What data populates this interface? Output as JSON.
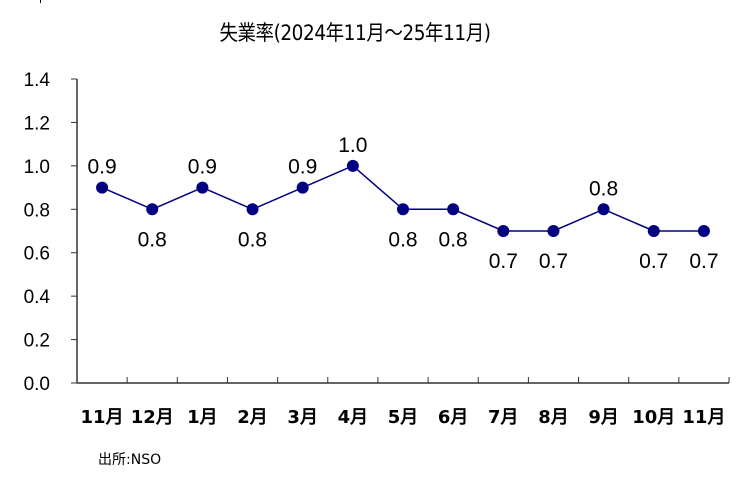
{
  "chart_data": {
    "type": "line",
    "title": "失業率(2024年11月～25年11月)",
    "xlabel": "",
    "ylabel": "",
    "categories": [
      "11月",
      "12月",
      "1月",
      "2月",
      "3月",
      "4月",
      "5月",
      "6月",
      "7月",
      "8月",
      "9月",
      "10月",
      "11月"
    ],
    "series": [
      {
        "name": "失業率",
        "values": [
          0.9,
          0.8,
          0.9,
          0.8,
          0.9,
          1.0,
          0.8,
          0.8,
          0.7,
          0.7,
          0.8,
          0.7,
          0.7
        ],
        "color": "#000080",
        "data_label_positions": [
          "above",
          "below",
          "above",
          "below",
          "above",
          "above",
          "below",
          "below",
          "below",
          "below",
          "above",
          "below",
          "below"
        ]
      }
    ],
    "ylim": [
      0.0,
      1.4
    ],
    "yticks": [
      "0.0",
      "0.2",
      "0.4",
      "0.6",
      "0.8",
      "1.0",
      "1.2",
      "1.4"
    ],
    "grid": false,
    "legend": null,
    "source": "出所:NSO"
  }
}
